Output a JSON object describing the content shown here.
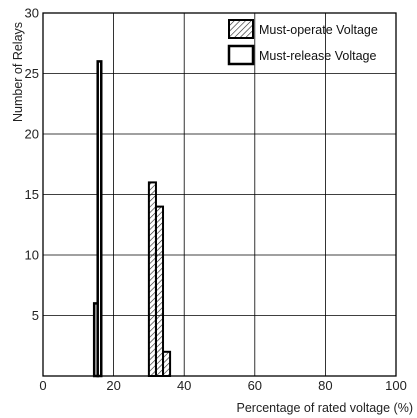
{
  "chart_data": {
    "type": "bar",
    "xlabel": "Percentage of rated voltage (%)",
    "ylabel": "Number of Relays",
    "xlim": [
      0,
      100
    ],
    "ylim": [
      0,
      30
    ],
    "xticks": [
      0,
      20,
      40,
      60,
      80,
      100
    ],
    "yticks": [
      5,
      10,
      15,
      20,
      25,
      30
    ],
    "grid": true,
    "legend_position": "top-right",
    "series": [
      {
        "name": "Must-operate Voltage",
        "fill": "hatched",
        "bins": [
          {
            "x0": 30,
            "x1": 32,
            "count": 16
          },
          {
            "x0": 32,
            "x1": 34,
            "count": 14
          },
          {
            "x0": 34,
            "x1": 36,
            "count": 2
          }
        ]
      },
      {
        "name": "Must-release Voltage",
        "fill": "open",
        "bins": [
          {
            "x0": 14.5,
            "x1": 15.5,
            "count": 6
          },
          {
            "x0": 15.5,
            "x1": 16.5,
            "count": 26
          }
        ]
      }
    ]
  }
}
